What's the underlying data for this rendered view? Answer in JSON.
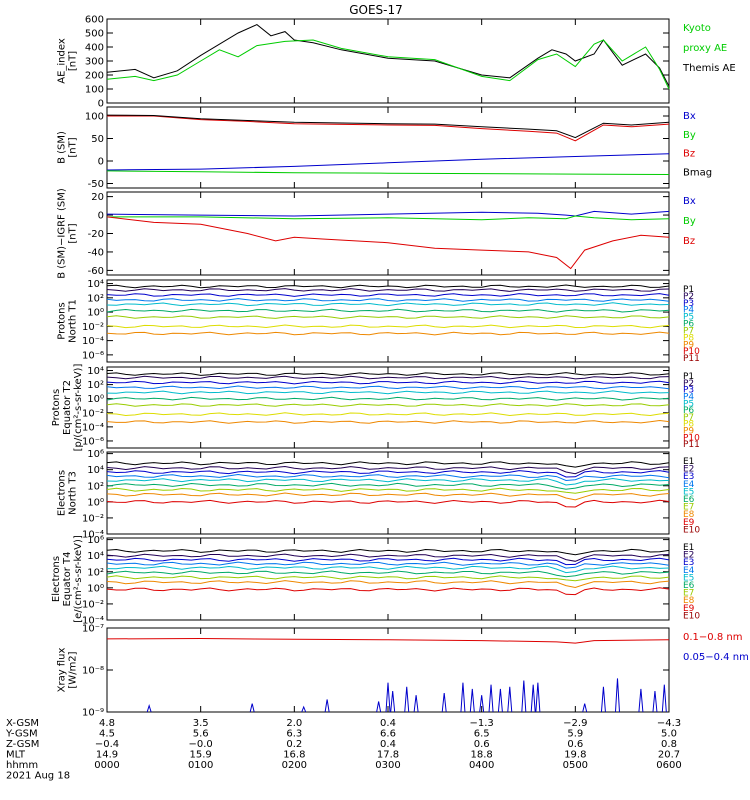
{
  "title": "GOES-17",
  "colors": {
    "black": "#000000",
    "red": "#dd0000",
    "green": "#00cc00",
    "blue": "#0000cc"
  },
  "chart_data": [
    {
      "type": "line",
      "id": "ae",
      "ylabel": [
        "AE_index",
        "[nT]"
      ],
      "ylim": [
        0,
        600
      ],
      "yticks": [
        "0",
        "100",
        "200",
        "300",
        "400",
        "500",
        "600"
      ],
      "ytick_values": [
        0,
        100,
        200,
        300,
        400,
        500,
        600
      ],
      "legend": [
        {
          "text": "Kyoto",
          "color": "#00cc00"
        },
        {
          "text": "proxy AE",
          "color": "#00cc00"
        },
        {
          "text": "Themis AE",
          "color": "#000000"
        }
      ],
      "series": [
        {
          "name": "Themis AE",
          "color": "#000000",
          "x": [
            0,
            0.3,
            0.5,
            0.75,
            1.0,
            1.4,
            1.6,
            1.75,
            1.9,
            2.0,
            2.2,
            2.5,
            3.0,
            3.5,
            4.0,
            4.3,
            4.6,
            4.75,
            4.9,
            5.0,
            5.2,
            5.3,
            5.5,
            5.75,
            5.9,
            6.0
          ],
          "y": [
            220,
            240,
            180,
            230,
            340,
            500,
            560,
            480,
            510,
            450,
            430,
            380,
            320,
            300,
            200,
            180,
            320,
            380,
            350,
            300,
            350,
            450,
            270,
            350,
            250,
            120
          ]
        },
        {
          "name": "Kyoto proxy AE",
          "color": "#00cc00",
          "x": [
            0,
            0.3,
            0.5,
            0.75,
            1.0,
            1.2,
            1.4,
            1.6,
            1.9,
            2.2,
            2.5,
            3.0,
            3.5,
            4.0,
            4.3,
            4.6,
            4.8,
            5.0,
            5.2,
            5.3,
            5.5,
            5.75,
            5.9,
            6.0
          ],
          "y": [
            170,
            190,
            160,
            200,
            300,
            380,
            330,
            410,
            440,
            450,
            390,
            330,
            310,
            190,
            160,
            310,
            350,
            260,
            420,
            450,
            300,
            400,
            240,
            100
          ]
        }
      ]
    },
    {
      "type": "line",
      "id": "bsm",
      "ylabel": [
        "B (SM)",
        "[nT]"
      ],
      "ylim": [
        -60,
        120
      ],
      "yticks": [
        "-50",
        "0",
        "50",
        "100"
      ],
      "ytick_values": [
        -50,
        0,
        50,
        100
      ],
      "legend": [
        {
          "text": "Bx",
          "color": "#0000cc"
        },
        {
          "text": "By",
          "color": "#00cc00"
        },
        {
          "text": "Bz",
          "color": "#dd0000"
        },
        {
          "text": "Bmag",
          "color": "#000000"
        }
      ],
      "series": [
        {
          "name": "Bx",
          "color": "#0000cc",
          "x": [
            0,
            1,
            2,
            3,
            4,
            5,
            6
          ],
          "y": [
            -20,
            -18,
            -12,
            -4,
            4,
            10,
            16
          ]
        },
        {
          "name": "By",
          "color": "#00cc00",
          "x": [
            0,
            1,
            2,
            3,
            4,
            5,
            6
          ],
          "y": [
            -22,
            -24,
            -26,
            -27,
            -28,
            -29,
            -30
          ]
        },
        {
          "name": "Bz",
          "color": "#dd0000",
          "x": [
            0,
            0.5,
            1,
            1.5,
            2,
            3,
            3.5,
            4,
            4.5,
            4.8,
            5.0,
            5.3,
            5.6,
            6.0
          ],
          "y": [
            100,
            100,
            92,
            88,
            83,
            80,
            79,
            72,
            66,
            62,
            45,
            80,
            76,
            82
          ]
        },
        {
          "name": "Bmag",
          "color": "#000000",
          "x": [
            0,
            0.5,
            1,
            1.5,
            2,
            3,
            3.5,
            4,
            4.5,
            4.8,
            5.0,
            5.3,
            5.6,
            6.0
          ],
          "y": [
            102,
            101,
            94,
            90,
            86,
            83,
            82,
            76,
            71,
            67,
            52,
            84,
            80,
            86
          ]
        }
      ]
    },
    {
      "type": "line",
      "id": "bdiff",
      "ylabel": [
        "B (SM)−IGRF (SM)",
        "[nT]"
      ],
      "ylim": [
        -65,
        25
      ],
      "yticks": [
        "-60",
        "-40",
        "-20",
        "0",
        "20"
      ],
      "ytick_values": [
        -60,
        -40,
        -20,
        0,
        20
      ],
      "legend": [
        {
          "text": "Bx",
          "color": "#0000cc"
        },
        {
          "text": "By",
          "color": "#00cc00"
        },
        {
          "text": "Bz",
          "color": "#dd0000"
        }
      ],
      "series": [
        {
          "name": "Bx",
          "color": "#0000cc",
          "x": [
            0,
            1,
            2,
            3,
            4,
            4.6,
            4.9,
            5.0,
            5.2,
            5.6,
            6.0
          ],
          "y": [
            1,
            0,
            -1,
            1,
            3,
            2,
            0,
            -1,
            4,
            1,
            4
          ]
        },
        {
          "name": "By",
          "color": "#00cc00",
          "x": [
            0,
            1,
            2,
            3,
            4,
            4.5,
            4.9,
            5.0,
            5.2,
            5.6,
            6.0
          ],
          "y": [
            -2,
            -2,
            -4,
            -3,
            -5,
            -3,
            -4,
            -1,
            -3,
            -5,
            -4
          ]
        },
        {
          "name": "Bz",
          "color": "#dd0000",
          "x": [
            0,
            0.5,
            1.0,
            1.5,
            1.8,
            2.0,
            2.3,
            3.0,
            3.5,
            4.0,
            4.5,
            4.8,
            4.95,
            5.1,
            5.4,
            5.7,
            6.0
          ],
          "y": [
            -2,
            -8,
            -10,
            -20,
            -28,
            -24,
            -26,
            -30,
            -36,
            -38,
            -40,
            -46,
            -58,
            -38,
            -28,
            -22,
            -24
          ]
        }
      ]
    },
    {
      "type": "line",
      "id": "p_north",
      "ylabel": [
        "Protons",
        "North T1"
      ],
      "log": true,
      "ylim": [
        -7,
        4.5
      ],
      "yticks": [
        "10⁴",
        "10²",
        "10⁰",
        "10⁻²",
        "10⁻⁴",
        "10⁻⁶"
      ],
      "ytick_values": [
        4,
        2,
        0,
        -2,
        -4,
        -6
      ],
      "legend": [
        {
          "text": "P1",
          "color": "#000000"
        },
        {
          "text": "P2",
          "color": "#220055"
        },
        {
          "text": "P3",
          "color": "#0000cc"
        },
        {
          "text": "P4",
          "color": "#0077ee"
        },
        {
          "text": "P5",
          "color": "#00bbcc"
        },
        {
          "text": "P6",
          "color": "#00aa66"
        },
        {
          "text": "P7",
          "color": "#99cc00"
        },
        {
          "text": "P8",
          "color": "#dddd00"
        },
        {
          "text": "P9",
          "color": "#ee8800"
        },
        {
          "text": "P10",
          "color": "#dd0000"
        },
        {
          "text": "P11",
          "color": "#990000"
        }
      ],
      "levels": [
        3.6,
        3.1,
        2.4,
        1.7,
        1.1,
        0.2,
        -0.7,
        -2.0,
        -3.0
      ],
      "level_colors": [
        "#000000",
        "#220055",
        "#0000cc",
        "#0077ee",
        "#00bbcc",
        "#00aa66",
        "#99cc00",
        "#dddd00",
        "#ee8800"
      ]
    },
    {
      "type": "line",
      "id": "p_equator",
      "ylabel": [
        "Protons",
        "Equator T2",
        "[p/(cm²-s-sr-keV)]"
      ],
      "log": true,
      "ylim": [
        -7,
        4.5
      ],
      "yticks": [
        "10⁴",
        "10²",
        "10⁰",
        "10⁻²",
        "10⁻⁴",
        "10⁻⁶"
      ],
      "ytick_values": [
        4,
        2,
        0,
        -2,
        -4,
        -6
      ],
      "legend": [
        {
          "text": "P1",
          "color": "#000000"
        },
        {
          "text": "P2",
          "color": "#220055"
        },
        {
          "text": "P3",
          "color": "#0000cc"
        },
        {
          "text": "P4",
          "color": "#0077ee"
        },
        {
          "text": "P5",
          "color": "#00bbcc"
        },
        {
          "text": "P6",
          "color": "#00aa66"
        },
        {
          "text": "P7",
          "color": "#99cc00"
        },
        {
          "text": "P8",
          "color": "#dddd00"
        },
        {
          "text": "P9",
          "color": "#ee8800"
        },
        {
          "text": "P10",
          "color": "#dd0000"
        },
        {
          "text": "P11",
          "color": "#990000"
        }
      ],
      "levels": [
        3.5,
        3.0,
        2.3,
        1.6,
        0.9,
        0.0,
        -0.9,
        -2.2,
        -3.3
      ],
      "level_colors": [
        "#000000",
        "#220055",
        "#0000cc",
        "#0077ee",
        "#00bbcc",
        "#00aa66",
        "#99cc00",
        "#dddd00",
        "#ee8800"
      ]
    },
    {
      "type": "line",
      "id": "e_north",
      "ylabel": [
        "Electrons",
        "North T3"
      ],
      "log": true,
      "ylim": [
        -4,
        6.2
      ],
      "yticks": [
        "10⁶",
        "10⁴",
        "10²",
        "10⁰",
        "10⁻²",
        "10⁻⁴"
      ],
      "ytick_values": [
        6,
        4,
        2,
        0,
        -2,
        -4
      ],
      "legend": [
        {
          "text": "E1",
          "color": "#000000"
        },
        {
          "text": "E2",
          "color": "#220055"
        },
        {
          "text": "E3",
          "color": "#0000cc"
        },
        {
          "text": "E4",
          "color": "#0077ee"
        },
        {
          "text": "E5",
          "color": "#00bbcc"
        },
        {
          "text": "E6",
          "color": "#00aa66"
        },
        {
          "text": "E7",
          "color": "#99cc00"
        },
        {
          "text": "E8",
          "color": "#ee8800"
        },
        {
          "text": "E9",
          "color": "#dd0000"
        },
        {
          "text": "E10",
          "color": "#990000"
        }
      ],
      "levels": [
        4.8,
        4.2,
        3.7,
        3.2,
        2.7,
        2.1,
        1.5,
        0.9,
        0.0
      ],
      "level_colors": [
        "#000000",
        "#220055",
        "#0000cc",
        "#0077ee",
        "#00bbcc",
        "#00aa66",
        "#99cc00",
        "#ee8800",
        "#dd0000"
      ]
    },
    {
      "type": "line",
      "id": "e_equator",
      "ylabel": [
        "Electrons",
        "Equator T4",
        "[e/(cm²-s-sr-keV)]"
      ],
      "log": true,
      "ylim": [
        -4,
        6.2
      ],
      "yticks": [
        "10⁶",
        "10⁴",
        "10²",
        "10⁰",
        "10⁻²",
        "10⁻⁴"
      ],
      "ytick_values": [
        6,
        4,
        2,
        0,
        -2,
        -4
      ],
      "legend": [
        {
          "text": "E1",
          "color": "#000000"
        },
        {
          "text": "E2",
          "color": "#220055"
        },
        {
          "text": "E3",
          "color": "#0000cc"
        },
        {
          "text": "E4",
          "color": "#0077ee"
        },
        {
          "text": "E5",
          "color": "#00bbcc"
        },
        {
          "text": "E6",
          "color": "#00aa66"
        },
        {
          "text": "E7",
          "color": "#99cc00"
        },
        {
          "text": "E8",
          "color": "#ee8800"
        },
        {
          "text": "E9",
          "color": "#dd0000"
        },
        {
          "text": "E10",
          "color": "#990000"
        }
      ],
      "levels": [
        4.6,
        4.0,
        3.5,
        3.0,
        2.5,
        1.9,
        1.3,
        0.7,
        -0.2
      ],
      "level_colors": [
        "#000000",
        "#220055",
        "#0000cc",
        "#0077ee",
        "#00bbcc",
        "#00aa66",
        "#99cc00",
        "#ee8800",
        "#dd0000"
      ]
    },
    {
      "type": "line",
      "id": "xray",
      "ylabel": [
        "Xray flux",
        "[W/m2]"
      ],
      "log": true,
      "ylim": [
        -9,
        -7
      ],
      "yticks": [
        "10⁻⁷",
        "10⁻⁸",
        "10⁻⁹"
      ],
      "ytick_values": [
        -7,
        -8,
        -9
      ],
      "legend": [
        {
          "text": "0.1−0.8 nm",
          "color": "#dd0000"
        },
        {
          "text": "0.05−0.4 nm",
          "color": "#0000cc"
        }
      ],
      "series": [
        {
          "name": "0.1−0.8 nm",
          "color": "#dd0000",
          "x": [
            0,
            1,
            2,
            3,
            4,
            4.8,
            5.0,
            5.2,
            6.0
          ],
          "y": [
            -7.26,
            -7.25,
            -7.27,
            -7.28,
            -7.3,
            -7.33,
            -7.36,
            -7.3,
            -7.28
          ]
        }
      ],
      "spikes_x": [
        0.45,
        1.55,
        2.1,
        2.35,
        2.9,
        3.0,
        3.05,
        3.2,
        3.3,
        3.6,
        3.8,
        3.9,
        4.0,
        4.1,
        4.2,
        4.3,
        4.45,
        4.55,
        4.6,
        5.1,
        5.3,
        5.45,
        5.7,
        5.85,
        5.95
      ],
      "spikes_y": [
        -8.85,
        -8.8,
        -8.88,
        -8.7,
        -8.75,
        -8.3,
        -8.5,
        -8.4,
        -8.6,
        -8.55,
        -8.3,
        -8.45,
        -8.6,
        -8.35,
        -8.45,
        -8.4,
        -8.25,
        -8.35,
        -8.3,
        -8.8,
        -8.4,
        -8.2,
        -8.45,
        -8.5,
        -8.35
      ]
    }
  ],
  "xaxis": {
    "row_labels": [
      "X-GSM",
      "Y-GSM",
      "Z-GSM",
      "MLT",
      "hhmm"
    ],
    "date": "2021 Aug 18",
    "columns": [
      {
        "t": 0,
        "values": [
          "4.8",
          "4.5",
          "−0.4",
          "14.9",
          "0000"
        ]
      },
      {
        "t": 1,
        "values": [
          "3.5",
          "5.6",
          "−0.0",
          "15.9",
          "0100"
        ]
      },
      {
        "t": 2,
        "values": [
          "2.0",
          "6.3",
          "0.2",
          "16.8",
          "0200"
        ]
      },
      {
        "t": 3,
        "values": [
          "0.4",
          "6.6",
          "0.4",
          "17.8",
          "0300"
        ]
      },
      {
        "t": 4,
        "values": [
          "−1.3",
          "6.5",
          "0.6",
          "18.8",
          "0400"
        ]
      },
      {
        "t": 5,
        "values": [
          "−2.9",
          "5.9",
          "0.6",
          "19.8",
          "0500"
        ]
      },
      {
        "t": 6,
        "values": [
          "−4.3",
          "5.0",
          "0.8",
          "20.7",
          "0600"
        ]
      }
    ]
  }
}
